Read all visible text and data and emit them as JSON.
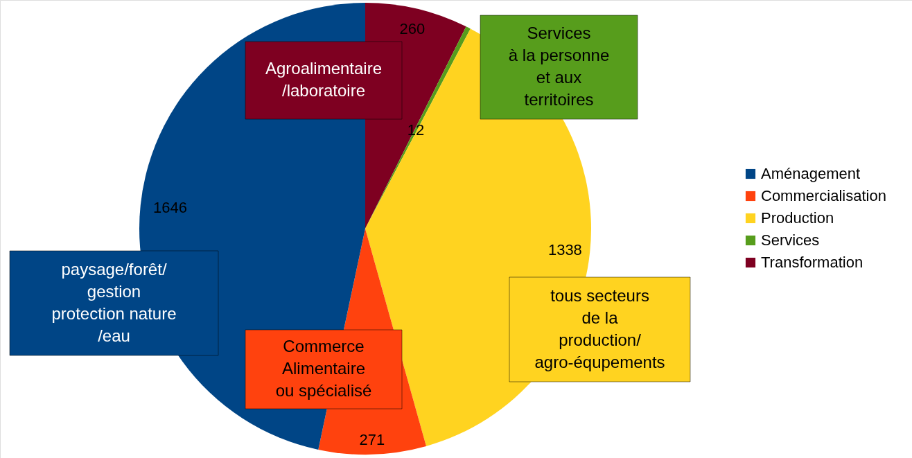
{
  "chart_data": {
    "type": "pie",
    "categories": [
      "Aménagement",
      "Commercialisation",
      "Production",
      "Services",
      "Transformation"
    ],
    "values": [
      1646,
      271,
      1338,
      12,
      260
    ],
    "colors": [
      "#004586",
      "#ff420e",
      "#ffd320",
      "#579d1c",
      "#7e0021"
    ],
    "data_labels": true,
    "legend": "right",
    "annotations": [
      "Agroalimentaire\n/laboratoire",
      "Services\nà la personne\net aux\nterritoires",
      "paysage/forêt/\ngestion\nprotection nature\n/eau",
      "Commerce\nAlimentaire\nou spécialisé",
      "tous secteurs\nde la\nproduction/\nagro-équpements"
    ]
  }
}
